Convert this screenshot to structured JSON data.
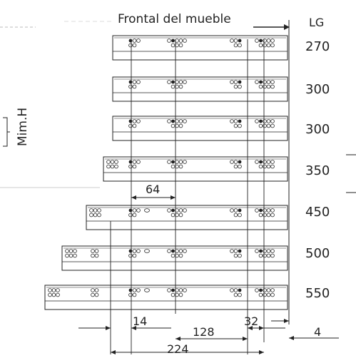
{
  "header": {
    "title": "Frontal del mueble",
    "lg_label": "LG"
  },
  "side_label": "Mim.H",
  "rails": [
    {
      "length": "270"
    },
    {
      "length": "300"
    },
    {
      "length": "300"
    },
    {
      "length": "350"
    },
    {
      "length": "450"
    },
    {
      "length": "500"
    },
    {
      "length": "550"
    }
  ],
  "dimensions": {
    "d64": "64",
    "d14": "14",
    "d128": "128",
    "d32": "32",
    "d4": "4",
    "d224": "224"
  },
  "colors": {
    "line": "#222222",
    "bg": "#ffffff"
  }
}
